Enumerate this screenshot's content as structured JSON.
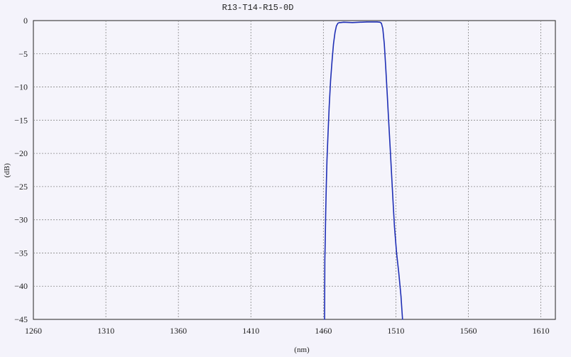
{
  "chart_data": {
    "type": "line",
    "title": "R13-T14-R15-0D",
    "xlabel": "(nm)",
    "ylabel": "(dB)",
    "xlim": [
      1260,
      1620
    ],
    "ylim": [
      -45,
      0
    ],
    "xticks": [
      1260,
      1310,
      1360,
      1410,
      1460,
      1510,
      1560,
      1610
    ],
    "yticks": [
      0,
      -5,
      -10,
      -15,
      -20,
      -25,
      -30,
      -35,
      -40,
      -45
    ],
    "grid": true,
    "series": [
      {
        "color": "#1f2fb5",
        "x": [
          1460.8,
          1461.0,
          1461.3,
          1461.6,
          1462.0,
          1462.5,
          1463.2,
          1464.0,
          1465.0,
          1466.0,
          1467.0,
          1468.0,
          1469.0,
          1470.0,
          1471.0,
          1472.0,
          1474.0,
          1480.0,
          1490.0,
          1497.0,
          1499.0,
          1500.0,
          1501.0,
          1502.0,
          1503.0,
          1504.0,
          1505.0,
          1506.0,
          1507.0,
          1508.0,
          1509.0,
          1510.5,
          1512.0,
          1513.5,
          1514.6
        ],
        "y": [
          -45,
          -36,
          -33,
          -29,
          -25,
          -21,
          -17,
          -13,
          -9,
          -6,
          -3.5,
          -1.8,
          -0.8,
          -0.4,
          -0.3,
          -0.3,
          -0.25,
          -0.3,
          -0.2,
          -0.2,
          -0.25,
          -0.4,
          -1.2,
          -3.5,
          -7,
          -11,
          -15,
          -19,
          -23,
          -27,
          -31,
          -35,
          -38,
          -41.5,
          -45
        ]
      }
    ]
  }
}
